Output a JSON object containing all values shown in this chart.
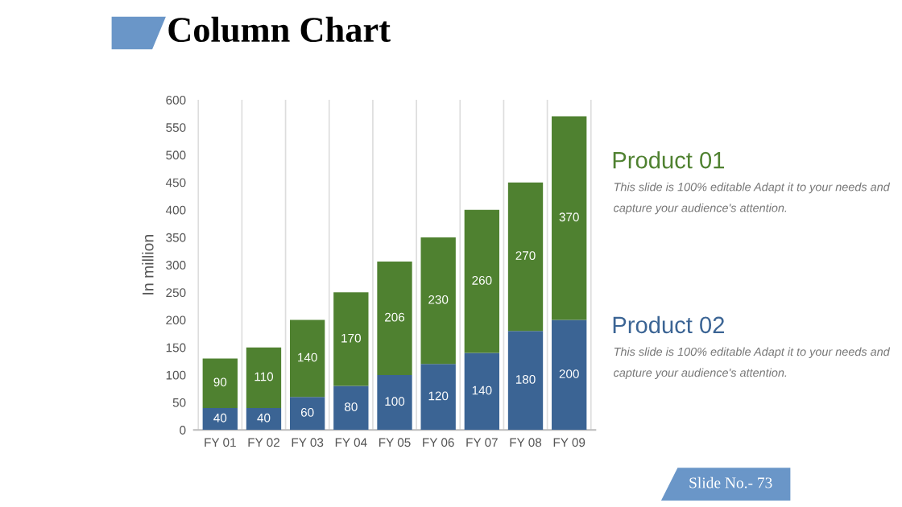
{
  "chart_data": {
    "type": "bar",
    "title": "Column Chart",
    "ylabel": "In million",
    "stacked": true,
    "categories": [
      "FY 01",
      "FY 02",
      "FY 03",
      "FY 04",
      "FY 05",
      "FY 06",
      "FY 07",
      "FY 08",
      "FY 09"
    ],
    "series": [
      {
        "name": "Product 02",
        "color": "#3b6494",
        "values": [
          40,
          40,
          60,
          80,
          100,
          120,
          140,
          180,
          200
        ]
      },
      {
        "name": "Product 01",
        "color": "#4f8130",
        "values": [
          90,
          110,
          140,
          170,
          206,
          230,
          260,
          270,
          370
        ]
      }
    ],
    "ylim": [
      0,
      600
    ],
    "yticks": [
      0,
      50,
      100,
      150,
      200,
      250,
      300,
      350,
      400,
      450,
      500,
      550,
      600
    ],
    "grid": "x",
    "data_labels": true,
    "legend": "right",
    "annotations": [
      "This slide is 100% editable Adapt it to your needs and capture your audience's attention.",
      "This slide is 100% editable Adapt it to your needs and capture your audience's attention.",
      "Slide No.- 73"
    ]
  }
}
